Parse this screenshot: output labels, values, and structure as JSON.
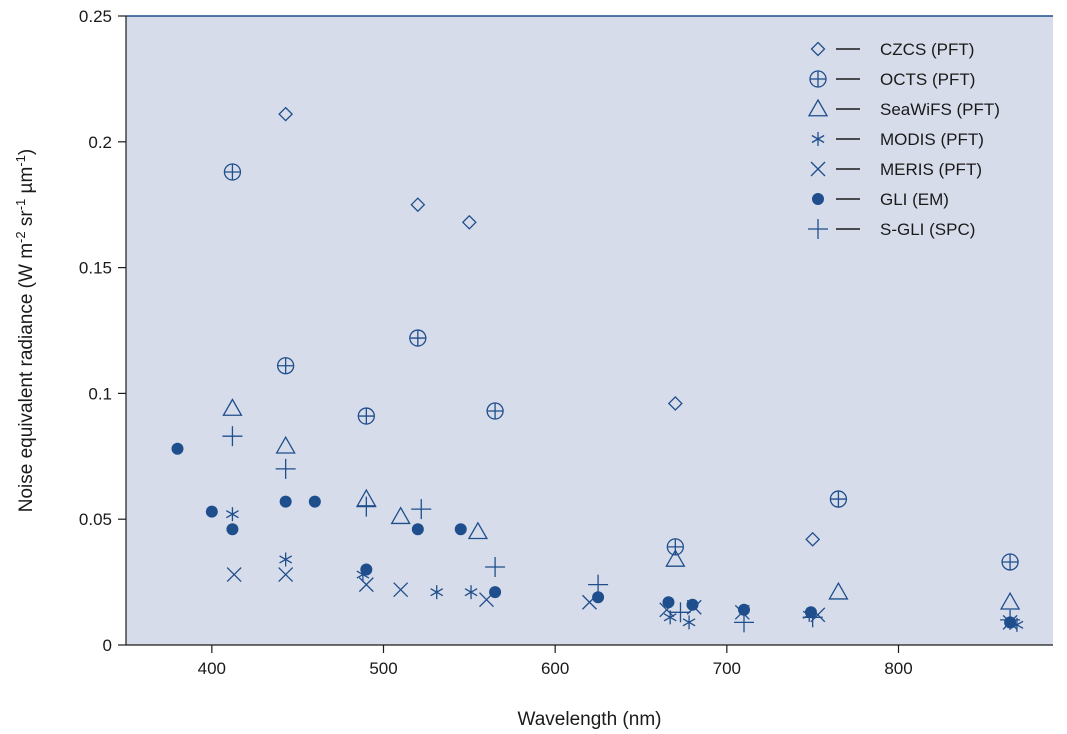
{
  "chart_data": {
    "type": "scatter",
    "xlabel": "Wavelength (nm)",
    "ylabel": {
      "parts": [
        {
          "t": "Noise equivalent radiance (W m",
          "sup": false
        },
        {
          "t": "-2",
          "sup": true
        },
        {
          "t": " sr",
          "sup": false
        },
        {
          "t": "-1",
          "sup": true
        },
        {
          "t": " µm",
          "sup": false
        },
        {
          "t": "-1",
          "sup": true
        },
        {
          "t": ")",
          "sup": false
        }
      ]
    },
    "xlim": [
      350,
      890
    ],
    "ylim": [
      0,
      0.25
    ],
    "xticks": [
      400,
      500,
      600,
      700,
      800
    ],
    "yticks": [
      0,
      0.05,
      0.1,
      0.15,
      0.2,
      0.25
    ],
    "ytick_labels": [
      "0",
      "0.05",
      "0.1",
      "0.15",
      "0.2",
      "0.25"
    ],
    "grid": false,
    "legend_position": "top-right",
    "colors": {
      "marker": "#1f4e8c",
      "plot_bg": "#d6dcea",
      "axis": "#1f4e8c"
    },
    "series": [
      {
        "name": "CZCS (PFT)",
        "marker": "diamond",
        "x": [
          443,
          520,
          550,
          670,
          750
        ],
        "y": [
          0.211,
          0.175,
          0.168,
          0.096,
          0.042
        ]
      },
      {
        "name": "OCTS (PFT)",
        "marker": "circle-plus",
        "x": [
          412,
          443,
          490,
          520,
          565,
          670,
          765,
          865
        ],
        "y": [
          0.188,
          0.111,
          0.091,
          0.122,
          0.093,
          0.039,
          0.058,
          0.033
        ]
      },
      {
        "name": "SeaWiFS (PFT)",
        "marker": "triangle",
        "x": [
          412,
          443,
          490,
          510,
          555,
          670,
          765,
          865
        ],
        "y": [
          0.094,
          0.079,
          0.058,
          0.051,
          0.045,
          0.034,
          0.021,
          0.017
        ]
      },
      {
        "name": "MODIS (PFT)",
        "marker": "asterisk",
        "x": [
          412,
          443,
          488,
          531,
          551,
          667,
          678,
          748,
          869
        ],
        "y": [
          0.052,
          0.034,
          0.028,
          0.021,
          0.021,
          0.011,
          0.009,
          0.012,
          0.008
        ]
      },
      {
        "name": "MERIS (PFT)",
        "marker": "x",
        "x": [
          413,
          443,
          490,
          510,
          560,
          620,
          665,
          681,
          709,
          753,
          865
        ],
        "y": [
          0.028,
          0.028,
          0.024,
          0.022,
          0.018,
          0.017,
          0.014,
          0.015,
          0.013,
          0.012,
          0.009
        ]
      },
      {
        "name": "GLI (EM)",
        "marker": "dot",
        "x": [
          380,
          400,
          412,
          443,
          460,
          490,
          520,
          545,
          565,
          625,
          666,
          680,
          710,
          749,
          865
        ],
        "y": [
          0.078,
          0.053,
          0.046,
          0.057,
          0.057,
          0.03,
          0.046,
          0.046,
          0.021,
          0.019,
          0.017,
          0.016,
          0.014,
          0.013,
          0.009
        ]
      },
      {
        "name": "S-GLI (SPC)",
        "marker": "plus",
        "x": [
          412,
          443,
          490,
          522,
          565,
          625,
          673,
          710,
          750,
          865
        ],
        "y": [
          0.083,
          0.07,
          0.055,
          0.054,
          0.031,
          0.024,
          0.013,
          0.009,
          0.011,
          0.01
        ]
      }
    ]
  }
}
